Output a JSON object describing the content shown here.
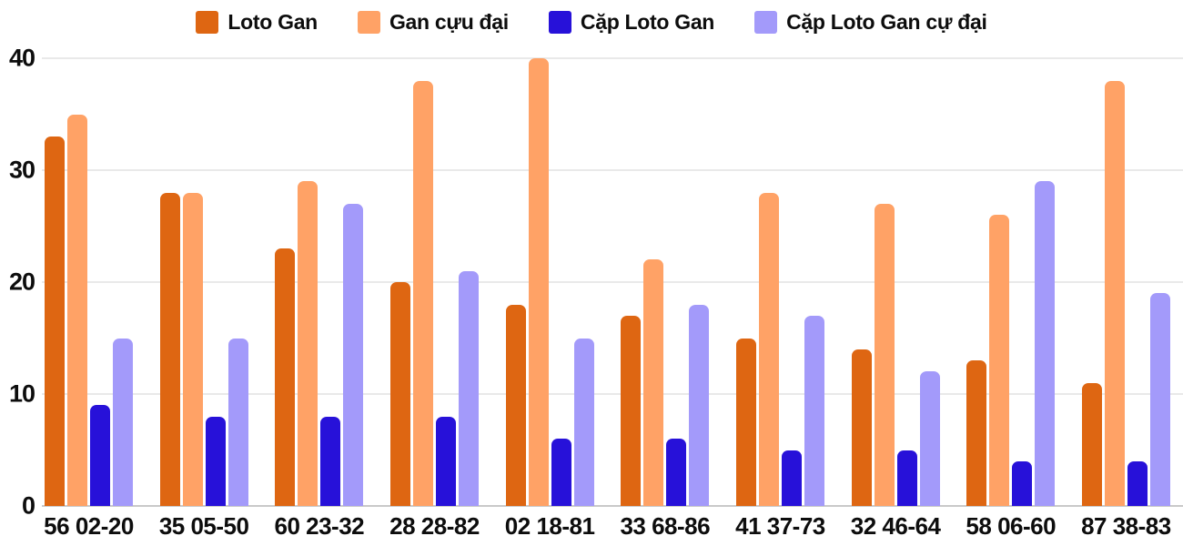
{
  "chart_data": {
    "type": "bar",
    "title": "",
    "categories": [
      "56 02-20",
      "35 05-50",
      "60 23-32",
      "28 28-82",
      "02 18-81",
      "33 68-86",
      "41 37-73",
      "32 46-64",
      "58 06-60",
      "87 38-83"
    ],
    "series": [
      {
        "name": "Loto Gan",
        "color": "#de6612",
        "values": [
          33,
          28,
          23,
          20,
          18,
          17,
          15,
          14,
          13,
          11
        ]
      },
      {
        "name": "Gan cựu đại",
        "color": "#ffa266",
        "values": [
          35,
          28,
          29,
          38,
          40,
          22,
          28,
          27,
          26,
          38
        ]
      },
      {
        "name": "Cặp Loto Gan",
        "color": "#2711d9",
        "values": [
          9,
          8,
          8,
          8,
          6,
          6,
          5,
          5,
          4,
          4
        ]
      },
      {
        "name": "Cặp Loto Gan cự đại",
        "color": "#a39afa",
        "values": [
          15,
          15,
          27,
          21,
          15,
          18,
          17,
          12,
          29,
          19
        ]
      }
    ],
    "yticks": [
      0,
      10,
      20,
      30,
      40
    ],
    "ylim": [
      0,
      40
    ],
    "xlabel": "",
    "ylabel": "",
    "grid": true,
    "legend_position": "top",
    "colors": {
      "text": "#0d0d0d",
      "gridline": "#e9e9e9",
      "axis_line": "#c9c9c9",
      "background": "#ffffff"
    }
  }
}
